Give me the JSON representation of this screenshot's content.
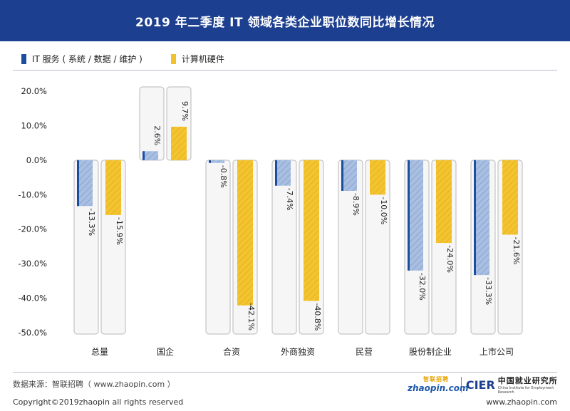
{
  "title": "2019 年二季度 IT 领域各类企业职位数同比增长情况",
  "legend": [
    {
      "label": "IT 服务 ( 系统 / 数据 / 维护 )",
      "color": "#1c4ea0"
    },
    {
      "label": "计算机硬件",
      "color": "#f2c12e"
    }
  ],
  "chart_data": {
    "type": "bar",
    "categories": [
      "总量",
      "国企",
      "合资",
      "外商独资",
      "民营",
      "股份制企业",
      "上市公司"
    ],
    "series": [
      {
        "name": "IT 服务 ( 系统 / 数据 / 维护 )",
        "values": [
          -13.3,
          2.6,
          -0.8,
          -7.4,
          -8.9,
          -32.0,
          -33.3
        ],
        "color": "#a7bde0",
        "edge_color": "#1c4ea0"
      },
      {
        "name": "计算机硬件",
        "values": [
          -15.9,
          9.7,
          -42.1,
          -40.8,
          -10.0,
          -24.0,
          -21.6
        ],
        "color": "#f2c12e",
        "edge_color": "#f2c12e"
      }
    ],
    "data_labels": [
      [
        "-13.3%",
        "2.6%",
        "-0.8%",
        "-7.4%",
        "-8.9%",
        "-32.0%",
        "-33.3%"
      ],
      [
        "-15.9%",
        "9.7%",
        "-42.1%",
        "-40.8%",
        "-10.0%",
        "-24.0%",
        "-21.6%"
      ]
    ],
    "yticks": [
      "20.0%",
      "10.0%",
      "0.0%",
      "-10.0%",
      "-20.0%",
      "-30.0%",
      "-40.0%",
      "-50.0%"
    ],
    "ytick_values": [
      20,
      10,
      0,
      -10,
      -20,
      -30,
      -40,
      -50
    ],
    "ylim": [
      -50,
      20
    ],
    "legend_position": "top-left",
    "grid": false
  },
  "footer": {
    "source": "数据来源：智联招聘（ www.zhaopin.com ）",
    "copyright": "Copyright©2019zhaopin all rights reserved",
    "website": "www.zhaopin.com"
  },
  "logos": {
    "zhaopin_cn": "智联招聘",
    "zhaopin_en": "zhaopin.com",
    "cier": "CIER",
    "cier_cn": "中国就业研究所",
    "cier_en": "China Institute for Employment Research"
  }
}
